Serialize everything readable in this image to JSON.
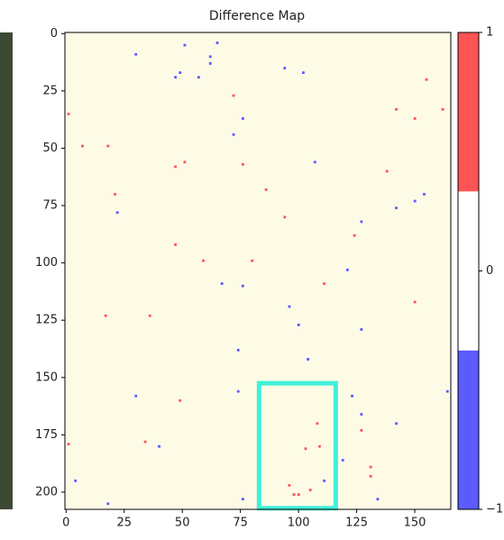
{
  "chart_data": {
    "type": "pixelmap",
    "title": "Difference Map",
    "xlim": [
      -0.5,
      165.5
    ],
    "ylim": [
      207.5,
      -0.5
    ],
    "xticks": [
      0,
      25,
      50,
      75,
      100,
      125,
      150
    ],
    "yticks": [
      0,
      25,
      50,
      75,
      100,
      125,
      150,
      175,
      200
    ],
    "background": "#fdfbe6",
    "colormap": [
      "#5b5bff",
      "#ffffff",
      "#ff5454"
    ],
    "clim": [
      -1,
      1
    ],
    "cticks": [
      {
        "value": -1,
        "label": "−1"
      },
      0,
      1
    ],
    "x": [
      65,
      62,
      62,
      51,
      49,
      57,
      76,
      72,
      94,
      102,
      107,
      22,
      127,
      142,
      150,
      154,
      76,
      67,
      96,
      100,
      121,
      127,
      74,
      74,
      104,
      30,
      123,
      127,
      142,
      164,
      40,
      76,
      111,
      119,
      18,
      134,
      4,
      30,
      47,
      1,
      7,
      18,
      47,
      51,
      76,
      21,
      86,
      94,
      124,
      59,
      47,
      17,
      36,
      80,
      111,
      49,
      34,
      1,
      96,
      98,
      100,
      109,
      108,
      127,
      131,
      131,
      155,
      142,
      150,
      162,
      138,
      72,
      150,
      105,
      103
    ],
    "y": [
      4,
      10,
      13,
      5,
      17,
      19,
      37,
      44,
      15,
      17,
      56,
      78,
      82,
      76,
      73,
      70,
      110,
      109,
      119,
      127,
      103,
      129,
      138,
      156,
      142,
      158,
      158,
      166,
      170,
      156,
      180,
      203,
      195,
      186,
      205,
      203,
      195,
      9,
      19,
      35,
      49,
      49,
      58,
      56,
      57,
      70,
      68,
      80,
      88,
      99,
      92,
      123,
      123,
      99,
      109,
      160,
      178,
      179,
      197,
      201,
      201,
      180,
      170,
      173,
      189,
      193,
      20,
      33,
      37,
      33,
      60,
      27,
      117,
      199,
      181
    ],
    "values": [
      -1,
      -1,
      -1,
      -1,
      -1,
      -1,
      -1,
      -1,
      -1,
      -1,
      -1,
      -1,
      -1,
      -1,
      -1,
      -1,
      -1,
      -1,
      -1,
      -1,
      -1,
      -1,
      -1,
      -1,
      -1,
      -1,
      -1,
      -1,
      -1,
      -1,
      -1,
      -1,
      -1,
      -1,
      -1,
      -1,
      -1,
      -1,
      -1,
      1,
      1,
      1,
      1,
      1,
      1,
      1,
      1,
      1,
      1,
      1,
      1,
      1,
      1,
      1,
      1,
      1,
      1,
      1,
      1,
      1,
      1,
      1,
      1,
      1,
      1,
      1,
      1,
      1,
      1,
      1,
      1,
      1,
      1,
      1,
      1
    ],
    "highlight": {
      "x": [
        83,
        116
      ],
      "y": [
        152.5,
        207
      ],
      "color": "#40f0d8"
    }
  }
}
